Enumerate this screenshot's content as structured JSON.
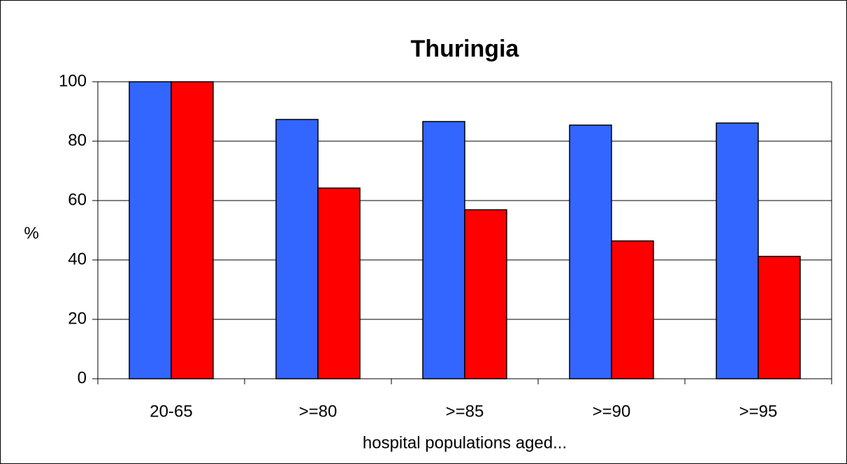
{
  "chart_data": {
    "type": "bar",
    "title": "Thuringia",
    "y_label": "%",
    "x_label": "hospital populations aged...",
    "categories": [
      "20-65",
      ">=80",
      ">=85",
      ">=90",
      ">=95"
    ],
    "series": [
      {
        "color": "#3366ff",
        "values": [
          100,
          87.3,
          86.6,
          85.4,
          86.1
        ]
      },
      {
        "color": "#ff0000",
        "values": [
          100,
          64.2,
          56.9,
          46.4,
          41.2
        ]
      }
    ],
    "ylim": [
      0,
      100
    ],
    "yticks": [
      0,
      20,
      40,
      60,
      80,
      100
    ],
    "grid": true
  }
}
